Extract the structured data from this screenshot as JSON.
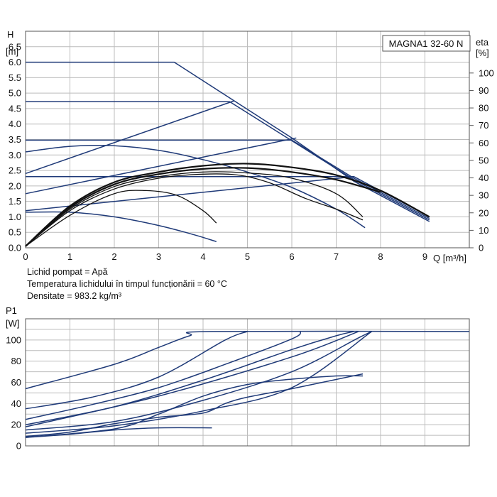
{
  "colors": {
    "curve": "#1f3a78",
    "eff": "#111111",
    "grid": "#bcbcbc",
    "frame": "#555555",
    "background": "#ffffff"
  },
  "notes": [
    "Lichid pompat = Apă",
    "Temperatura lichidului în timpul funcționării = 60 °C",
    "Densitate = 983.2 kg/m³"
  ],
  "chart_data": [
    {
      "type": "line",
      "title": "MAGNA1 32-60 N",
      "ylabel": [
        "H",
        "[m]"
      ],
      "y2label": [
        "eta",
        "[%]"
      ],
      "xlabel": "Q [m³/h]",
      "xlim": [
        0,
        10
      ],
      "ylim": [
        0,
        7
      ],
      "y2lim": [
        0,
        100
      ],
      "grid": true,
      "xticks": [
        "0",
        "1",
        "2",
        "3",
        "4",
        "5",
        "6",
        "7",
        "8",
        "9"
      ],
      "yticks": [
        "0.0",
        "0.5",
        "1.0",
        "1.5",
        "2.0",
        "2.5",
        "3.0",
        "3.5",
        "4.0",
        "4.5",
        "5.0",
        "5.5",
        "6.0",
        "6.5"
      ],
      "y2ticks": [
        "0",
        "10",
        "20",
        "30",
        "40",
        "50",
        "60",
        "70",
        "80",
        "90",
        "100"
      ],
      "series": [
        {
          "values": [
            [
              0,
              6.0
            ],
            [
              3.35,
              6.0
            ],
            [
              6.0,
              3.55
            ],
            [
              7.4,
              2.15
            ],
            [
              9.1,
              0.85
            ]
          ]
        },
        {
          "values": [
            [
              0,
              4.72
            ],
            [
              4.6,
              4.72
            ],
            [
              7.4,
              2.2
            ],
            [
              9.1,
              0.9
            ]
          ]
        },
        {
          "values": [
            [
              0,
              3.48
            ],
            [
              6.0,
              3.48
            ],
            [
              7.4,
              2.25
            ],
            [
              9.1,
              0.95
            ]
          ]
        },
        {
          "values": [
            [
              0,
              2.3
            ],
            [
              7.4,
              2.3
            ],
            [
              9.1,
              1.0
            ]
          ]
        },
        {
          "values": [
            [
              0,
              2.4
            ],
            [
              4.7,
              4.75
            ]
          ]
        },
        {
          "values": [
            [
              0,
              1.75
            ],
            [
              6.1,
              3.55
            ]
          ]
        },
        {
          "values": [
            [
              0,
              1.2
            ],
            [
              7.4,
              2.3
            ]
          ]
        },
        {
          "values": [
            [
              0,
              3.1
            ],
            [
              1.0,
              3.28
            ],
            [
              2.0,
              3.3
            ],
            [
              3.0,
              3.15
            ],
            [
              4.0,
              2.85
            ],
            [
              5.0,
              2.45
            ],
            [
              6.0,
              1.95
            ],
            [
              7.0,
              1.25
            ],
            [
              7.65,
              0.65
            ]
          ]
        },
        {
          "values": [
            [
              0,
              1.15
            ],
            [
              1.0,
              1.15
            ],
            [
              2.0,
              1.0
            ],
            [
              3.0,
              0.72
            ],
            [
              3.8,
              0.42
            ],
            [
              4.3,
              0.2
            ]
          ]
        },
        {
          "values": [
            [
              0,
              0.05
            ],
            [
              1.0,
              1.35
            ],
            [
              2.0,
              2.12
            ],
            [
              3.0,
              2.45
            ],
            [
              4.0,
              2.65
            ],
            [
              5.0,
              2.72
            ],
            [
              6.0,
              2.6
            ],
            [
              7.0,
              2.35
            ],
            [
              8.0,
              1.85
            ],
            [
              9.1,
              1.0
            ]
          ]
        },
        {
          "values": [
            [
              0,
              0.05
            ],
            [
              1.0,
              1.3
            ],
            [
              2.0,
              2.05
            ],
            [
              3.0,
              2.38
            ],
            [
              4.0,
              2.55
            ],
            [
              5.0,
              2.58
            ],
            [
              6.0,
              2.45
            ],
            [
              7.0,
              2.2
            ],
            [
              8.0,
              1.8
            ]
          ]
        },
        {
          "values": [
            [
              0,
              0.05
            ],
            [
              1.0,
              1.25
            ],
            [
              2.0,
              1.98
            ],
            [
              3.0,
              2.3
            ],
            [
              4.0,
              2.45
            ],
            [
              5.0,
              2.42
            ],
            [
              6.0,
              2.25
            ],
            [
              7.0,
              1.75
            ],
            [
              7.6,
              1.0
            ]
          ]
        },
        {
          "values": [
            [
              0,
              0.05
            ],
            [
              1.0,
              1.2
            ],
            [
              2.0,
              1.9
            ],
            [
              3.0,
              2.25
            ],
            [
              4.0,
              2.38
            ],
            [
              4.8,
              2.35
            ],
            [
              5.5,
              2.1
            ],
            [
              6.3,
              1.6
            ],
            [
              7.0,
              1.25
            ],
            [
              7.6,
              0.9
            ]
          ]
        },
        {
          "values": [
            [
              0,
              0.05
            ],
            [
              1.0,
              1.05
            ],
            [
              2.0,
              1.75
            ],
            [
              2.7,
              1.85
            ],
            [
              3.4,
              1.7
            ],
            [
              4.0,
              1.2
            ],
            [
              4.3,
              0.8
            ]
          ]
        }
      ]
    },
    {
      "type": "line",
      "ylabel": [
        "P1",
        "[W]"
      ],
      "xlim": [
        0,
        10
      ],
      "ylim": [
        0,
        120
      ],
      "grid": true,
      "yticks": [
        "0",
        "20",
        "40",
        "60",
        "80",
        "100"
      ],
      "series": [
        {
          "values": [
            [
              0,
              54
            ],
            [
              2.0,
              77
            ],
            [
              3.0,
              93
            ],
            [
              3.7,
              104
            ],
            [
              4.2,
              108
            ],
            [
              10.0,
              108
            ]
          ]
        },
        {
          "values": [
            [
              0,
              35
            ],
            [
              1.5,
              46
            ],
            [
              3.0,
              65
            ],
            [
              4.5,
              100
            ],
            [
              5.0,
              108
            ]
          ]
        },
        {
          "values": [
            [
              0,
              25
            ],
            [
              1.5,
              39
            ],
            [
              3.0,
              55
            ],
            [
              4.5,
              77
            ],
            [
              6.0,
              101
            ],
            [
              6.2,
              108
            ]
          ]
        },
        {
          "values": [
            [
              0,
              20
            ],
            [
              2.0,
              37
            ],
            [
              4.0,
              62
            ],
            [
              6.0,
              91
            ],
            [
              7.0,
              104
            ],
            [
              7.4,
              108
            ]
          ]
        },
        {
          "values": [
            [
              0,
              18
            ],
            [
              3.0,
              47
            ],
            [
              6.0,
              84
            ],
            [
              7.5,
              108
            ]
          ]
        },
        {
          "values": [
            [
              0,
              15
            ],
            [
              2.0,
              23
            ],
            [
              4.0,
              43
            ],
            [
              6.0,
              70
            ],
            [
              7.5,
              102
            ],
            [
              7.8,
              108
            ]
          ]
        },
        {
          "values": [
            [
              0,
              12
            ],
            [
              2.0,
              19
            ],
            [
              4.0,
              33
            ],
            [
              6.0,
              55
            ],
            [
              7.8,
              108
            ]
          ]
        },
        {
          "values": [
            [
              0,
              9
            ],
            [
              1.0,
              13
            ],
            [
              2.0,
              21
            ],
            [
              3.0,
              27
            ],
            [
              4.0,
              31
            ],
            [
              4.5,
              40
            ],
            [
              5.0,
              46
            ],
            [
              6.0,
              54
            ],
            [
              7.6,
              68
            ]
          ]
        },
        {
          "values": [
            [
              0,
              8
            ],
            [
              2.0,
              16
            ],
            [
              3.0,
              30
            ],
            [
              4.0,
              47
            ],
            [
              5.0,
              58
            ],
            [
              6.0,
              63
            ],
            [
              7.0,
              66
            ],
            [
              7.6,
              66
            ]
          ]
        },
        {
          "values": [
            [
              0,
              8
            ],
            [
              1.0,
              11
            ],
            [
              2.0,
              15
            ],
            [
              3.0,
              17
            ],
            [
              4.2,
              17
            ]
          ]
        }
      ]
    }
  ]
}
